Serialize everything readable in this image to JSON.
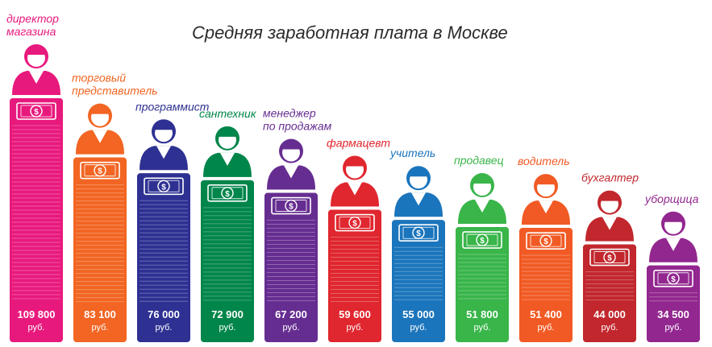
{
  "chart_data": {
    "type": "bar",
    "title": "Средняя заработная плата в Москве",
    "unit": "руб.",
    "categories": [
      [
        "директор",
        "магазина"
      ],
      [
        "торговый",
        "представитель"
      ],
      [
        "программист"
      ],
      [
        "сантехник"
      ],
      [
        "менеджер",
        "по продажам"
      ],
      [
        "фармацевт"
      ],
      [
        "учитель"
      ],
      [
        "продавец"
      ],
      [
        "водитель"
      ],
      [
        "бухгалтер"
      ],
      [
        "уборщица"
      ]
    ],
    "values": [
      109800,
      83100,
      76000,
      72900,
      67200,
      59600,
      55000,
      51800,
      51400,
      44000,
      34500
    ],
    "value_labels": [
      "109 800",
      "83 100",
      "76 000",
      "72 900",
      "67 200",
      "59 600",
      "55 000",
      "51 800",
      "51 400",
      "44 000",
      "34 500"
    ],
    "colors": [
      "#e8197d",
      "#f26522",
      "#2e3192",
      "#00854a",
      "#662d91",
      "#e0262f",
      "#1b75bc",
      "#39b54a",
      "#f15a24",
      "#c1272d",
      "#92278f"
    ],
    "icons": [
      "store-director-icon",
      "sales-rep-icon",
      "programmer-icon",
      "plumber-icon",
      "sales-manager-icon",
      "pharmacist-icon",
      "teacher-icon",
      "seller-icon",
      "driver-icon",
      "accountant-icon",
      "cleaner-icon"
    ],
    "ylim": [
      0,
      109800
    ],
    "grid": false,
    "legend": "none"
  }
}
